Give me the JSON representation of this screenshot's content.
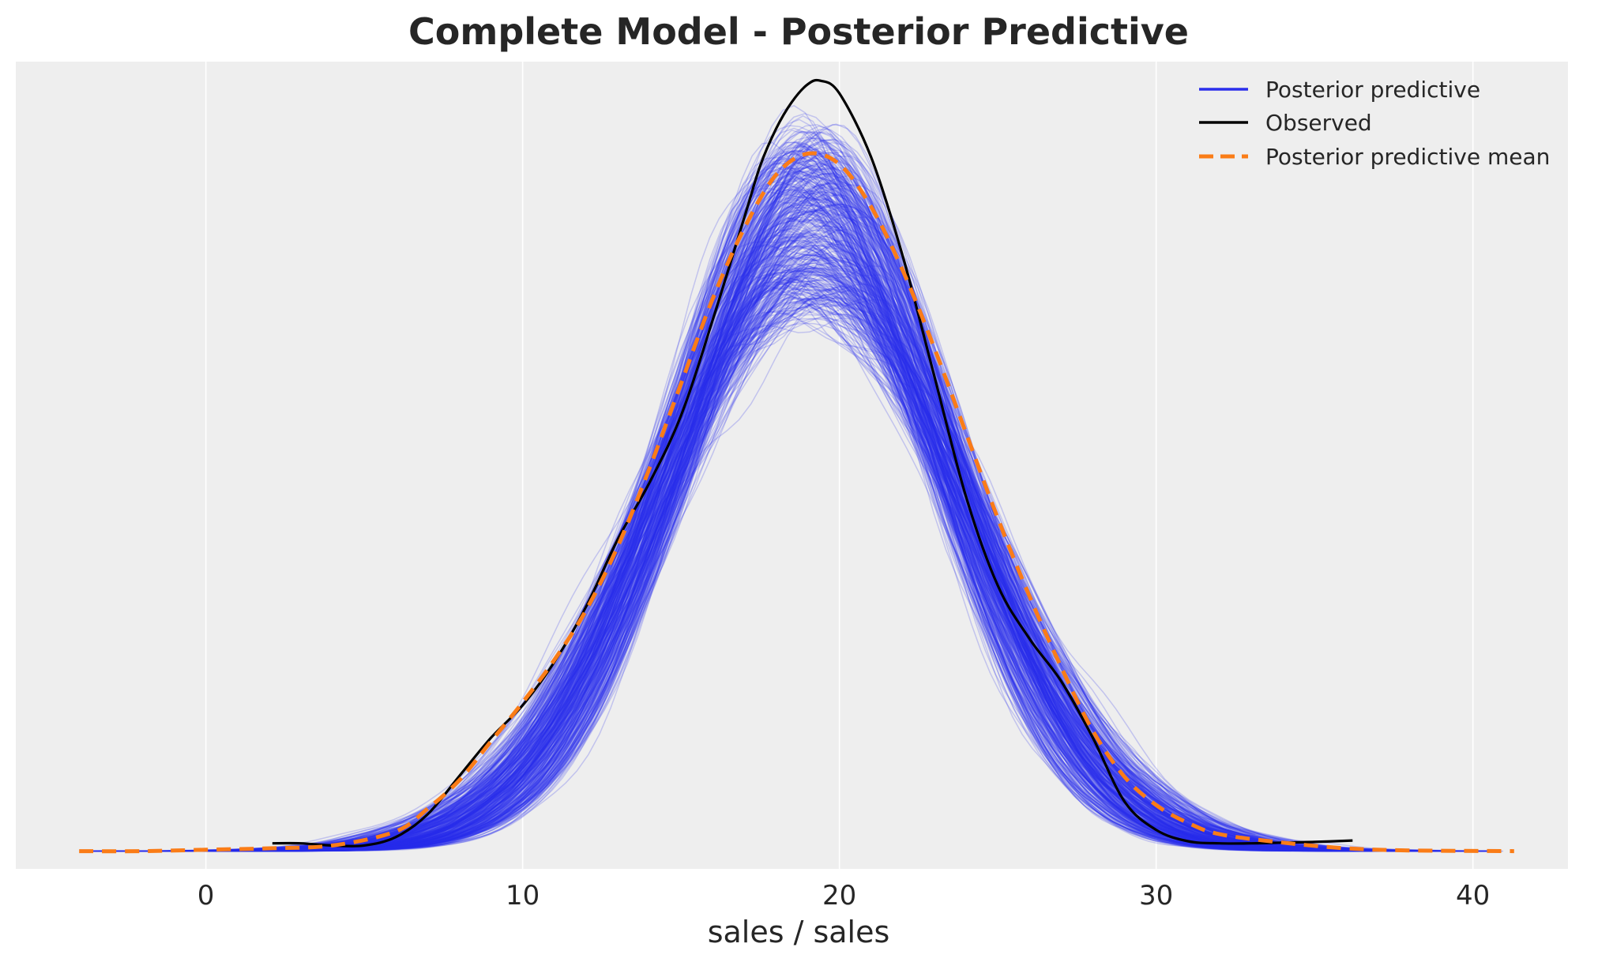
{
  "chart_data": {
    "type": "line",
    "title": "Complete Model - Posterior Predictive",
    "xlabel": "sales / sales",
    "ylabel": "",
    "xlim": [
      -6,
      43
    ],
    "ylim": [
      -0.0025,
      0.1115
    ],
    "x_ticks": [
      0,
      10,
      20,
      30,
      40
    ],
    "grid": "vertical",
    "legend_position": "top-right",
    "background_color": "#eeeeee",
    "legend": [
      {
        "label": "Posterior predictive",
        "color": "#2a2eec",
        "style": "solid"
      },
      {
        "label": "Observed",
        "color": "#000000",
        "style": "solid"
      },
      {
        "label": "Posterior predictive mean",
        "color": "#fa7c17",
        "style": "dashed"
      }
    ],
    "series": [
      {
        "name": "Posterior predictive",
        "color": "#2a2eec",
        "style": "ensemble",
        "draws": 400,
        "mean": 19.1,
        "sd": 5.1,
        "amp_min": 0.076,
        "amp_max": 0.102,
        "x_range": [
          -4,
          41
        ]
      },
      {
        "name": "Observed",
        "color": "#000000",
        "style": "solid",
        "x": [
          2.1,
          3.0,
          4.0,
          5.0,
          6.0,
          7.0,
          8.0,
          9.0,
          10.0,
          11.0,
          12.0,
          13.0,
          14.0,
          15.0,
          16.0,
          17.0,
          17.5,
          18.0,
          18.5,
          19.0,
          19.4,
          20.0,
          21.0,
          22.0,
          23.0,
          24.0,
          25.0,
          26.0,
          27.0,
          28.0,
          29.0,
          30.0,
          31.0,
          32.0,
          33.0,
          34.0,
          35.0,
          36.2
        ],
        "y": [
          0.0011,
          0.0011,
          0.0008,
          0.0008,
          0.002,
          0.0052,
          0.0106,
          0.016,
          0.0206,
          0.0267,
          0.0345,
          0.044,
          0.052,
          0.0615,
          0.075,
          0.0895,
          0.0968,
          0.102,
          0.1058,
          0.1083,
          0.1088,
          0.107,
          0.098,
          0.084,
          0.067,
          0.05,
          0.0375,
          0.03,
          0.024,
          0.016,
          0.007,
          0.003,
          0.0014,
          0.0011,
          0.0011,
          0.0012,
          0.0013,
          0.0015
        ]
      },
      {
        "name": "Posterior predictive mean",
        "color": "#fa7c17",
        "style": "dashed",
        "x": [
          -4,
          -2,
          0,
          2,
          4,
          6,
          7,
          8,
          9,
          10,
          11,
          12,
          13,
          14,
          15,
          16,
          17,
          18,
          19,
          20,
          21,
          22,
          23,
          24,
          25,
          26,
          27,
          28,
          29,
          30,
          31,
          32,
          34,
          36,
          38,
          41.3
        ],
        "y": [
          0.0,
          0.0,
          0.0002,
          0.0004,
          0.0008,
          0.0028,
          0.006,
          0.01,
          0.0155,
          0.021,
          0.027,
          0.034,
          0.043,
          0.054,
          0.066,
          0.078,
          0.088,
          0.0955,
          0.0985,
          0.097,
          0.091,
          0.082,
          0.071,
          0.059,
          0.047,
          0.036,
          0.026,
          0.017,
          0.0105,
          0.0065,
          0.004,
          0.0024,
          0.0012,
          0.0004,
          0.0001,
          0.0
        ]
      }
    ]
  }
}
